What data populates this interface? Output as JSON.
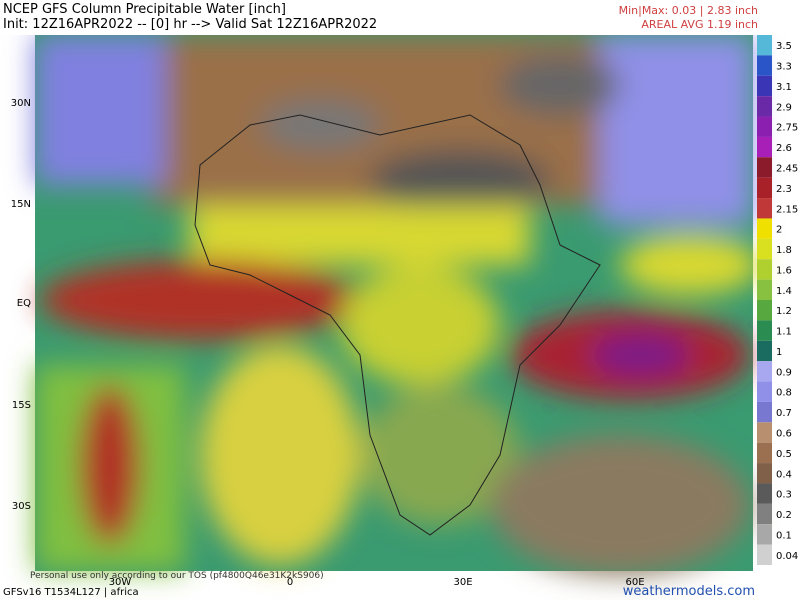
{
  "header": {
    "title": "NCEP GFS Column Precipitable Water [inch]",
    "init": "Init: 12Z16APR2022 -- [0] hr --> Valid Sat 12Z16APR2022",
    "minmax": "Min|Max: 0.03 | 2.83 inch",
    "areal_avg": "AREAL AVG 1.19 inch"
  },
  "map": {
    "lat_labels": [
      "30N",
      "15N",
      "EQ",
      "15S",
      "30S"
    ],
    "lon_labels": [
      "30W",
      "0",
      "30E",
      "60E"
    ]
  },
  "colorbar": {
    "labels": [
      "3.5",
      "3.3",
      "3.1",
      "2.9",
      "2.75",
      "2.6",
      "2.45",
      "2.3",
      "2.15",
      "2",
      "1.8",
      "1.6",
      "1.4",
      "1.2",
      "1.1",
      "1",
      "0.9",
      "0.8",
      "0.7",
      "0.6",
      "0.5",
      "0.4",
      "0.3",
      "0.2",
      "0.1",
      "0.04"
    ],
    "colors": [
      "#55b8d8",
      "#2a55c8",
      "#3a35b5",
      "#6a2aa8",
      "#8a1fb0",
      "#a81fb8",
      "#8b1a2a",
      "#a82028",
      "#c03838",
      "#f0e000",
      "#d8e020",
      "#b0d030",
      "#88c040",
      "#58a840",
      "#2a8c50",
      "#1a6c60",
      "#a8a8f0",
      "#9090e8",
      "#7878d0",
      "#b89070",
      "#9a7050",
      "#806048",
      "#5a5a5a",
      "#808080",
      "#a8a8a8",
      "#d0d0d0"
    ]
  },
  "footer": {
    "disclaimer": "Personal use only according to our TOS (pf4800Q46e31K2kS906)",
    "model": "GFSv16 T1534L127 | africa",
    "site": "weathermodels.com"
  }
}
